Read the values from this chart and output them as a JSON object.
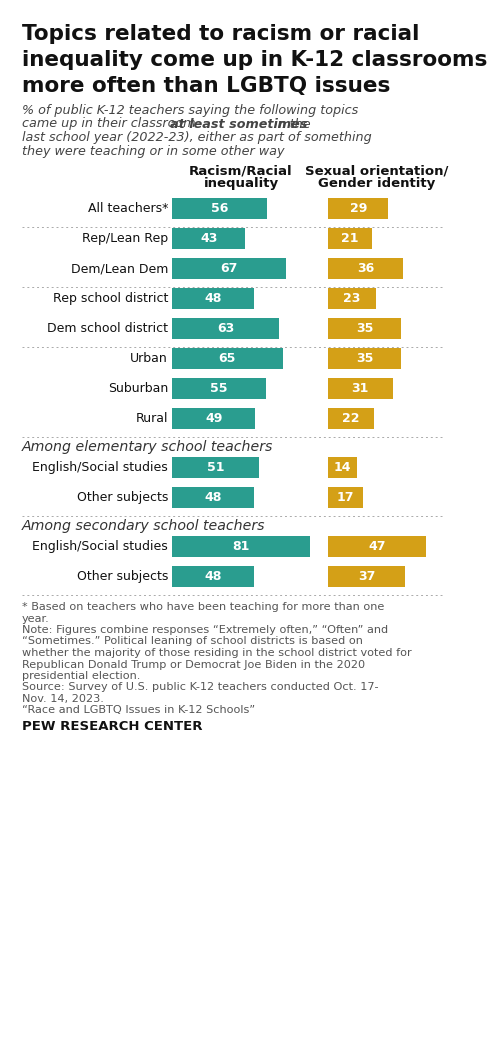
{
  "title_lines": [
    "Topics related to racism or racial",
    "inequality come up in K-12 classrooms",
    "more often than LGBTQ issues"
  ],
  "subtitle_line1": "% of public K-12 teachers saying the following topics",
  "subtitle_line2a": "came up in their classroom ",
  "subtitle_line2b": "at least sometimes",
  "subtitle_line2c": " in the",
  "subtitle_line3": "last school year (2022-23), either as part of something",
  "subtitle_line4": "they were teaching or in some other way",
  "col1_header_line1": "Racism/Racial",
  "col1_header_line2": "inequality",
  "col2_header_line1": "Sexual orientation/",
  "col2_header_line2": "Gender identity",
  "categories": [
    "All teachers*",
    "Rep/Lean Rep",
    "Dem/Lean Dem",
    "Rep school district",
    "Dem school district",
    "Urban",
    "Suburban",
    "Rural",
    "English/Social studies",
    "Other subjects",
    "English/Social studies",
    "Other subjects"
  ],
  "values1": [
    56,
    43,
    67,
    48,
    63,
    65,
    55,
    49,
    51,
    48,
    81,
    48
  ],
  "values2": [
    29,
    21,
    36,
    23,
    35,
    35,
    31,
    22,
    14,
    17,
    47,
    37
  ],
  "color1": "#2a9d8f",
  "color2": "#d4a017",
  "section_labels": [
    {
      "text": "Among elementary school teachers",
      "before_index": 8
    },
    {
      "text": "Among secondary school teachers",
      "before_index": 10
    }
  ],
  "dividers_after": [
    0,
    2,
    4,
    7,
    9
  ],
  "footnote_lines": [
    "* Based on teachers who have been teaching for more than one",
    "year.",
    "Note: Figures combine responses “Extremely often,” “Often” and",
    "“Sometimes.” Political leaning of school districts is based on",
    "whether the majority of those residing in the school district voted for",
    "Republican Donald Trump or Democrat Joe Biden in the 2020",
    "presidential election.",
    "Source: Survey of U.S. public K-12 teachers conducted Oct. 17-",
    "Nov. 14, 2023.",
    "“Race and LGBTQ Issues in K-12 Schools”"
  ],
  "source_bold": "PEW RESEARCH CENTER",
  "bg_color": "#ffffff",
  "bar1_max_value": 81,
  "bar2_max_value": 47
}
